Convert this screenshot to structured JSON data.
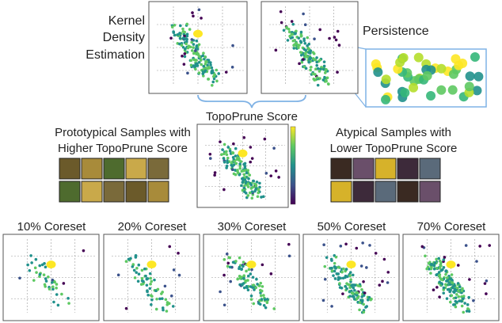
{
  "top": {
    "kde_label": [
      "Kernel",
      "Density",
      "Estimation"
    ],
    "persistence_label": "Persistence"
  },
  "center": {
    "title": "TopoPrune Score",
    "prototypical": [
      "Prototypical Samples with",
      "Higher TopoPrune Score"
    ],
    "atypical": [
      "Atypical Samples with",
      "Lower TopoPrune Score"
    ]
  },
  "coresets": [
    "10% Coreset",
    "20% Coreset",
    "30% Coreset",
    "50% Coreset",
    "70% Coreset"
  ]
}
